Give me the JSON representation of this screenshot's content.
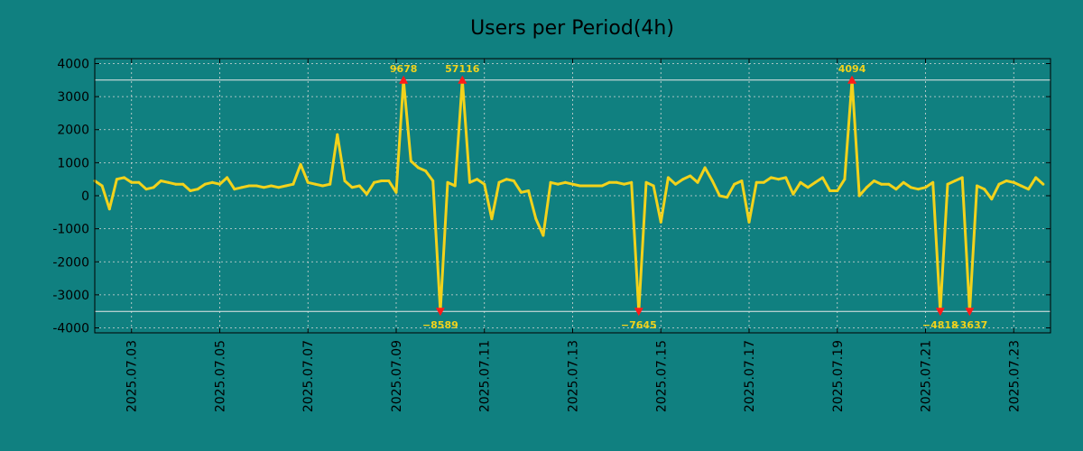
{
  "colors": {
    "background": "#108080",
    "line": "#f2d21b",
    "marker": "#ff1a1a",
    "annotation": "#f2d21b",
    "clip_line": "#e8e8e8",
    "grid": "#d8d8d8"
  },
  "chart_data": {
    "type": "line",
    "title": "Users per Period(4h)",
    "xlabel": "",
    "ylabel": "",
    "ylim": [
      -4150,
      4150
    ],
    "yticks": [
      4000,
      3000,
      2000,
      1000,
      0,
      -1000,
      -2000,
      -3000,
      -4000
    ],
    "ytick_labels": [
      "4000",
      "3000",
      "2000",
      "1000",
      "0",
      "-1000",
      "-2000",
      "-3000",
      "-4000"
    ],
    "xlim": [
      "2025-07-02 04:00",
      "2025-07-23 20:00"
    ],
    "xtick_labels": [
      "2025.07.03",
      "2025.07.05",
      "2025.07.07",
      "2025.07.09",
      "2025.07.11",
      "2025.07.13",
      "2025.07.15",
      "2025.07.17",
      "2025.07.19",
      "2025.07.21",
      "2025.07.23"
    ],
    "xtick_dates": [
      "2025-07-03",
      "2025-07-05",
      "2025-07-07",
      "2025-07-09",
      "2025-07-11",
      "2025-07-13",
      "2025-07-15",
      "2025-07-17",
      "2025-07-19",
      "2025-07-21",
      "2025-07-23"
    ],
    "grid": true,
    "clip_lines": [
      3500,
      -3500
    ],
    "series": [
      {
        "start": "2025-07-02 04:00",
        "interval_hours": 4,
        "values": [
          450,
          300,
          -400,
          500,
          550,
          400,
          400,
          200,
          250,
          450,
          400,
          350,
          350,
          150,
          200,
          350,
          400,
          350,
          550,
          200,
          250,
          300,
          300,
          250,
          300,
          250,
          300,
          350,
          950,
          400,
          350,
          300,
          350,
          1850,
          450,
          250,
          300,
          50,
          400,
          450,
          450,
          100,
          3500,
          1050,
          850,
          750,
          450,
          -3500,
          400,
          300,
          3500,
          400,
          500,
          350,
          -700,
          400,
          500,
          450,
          100,
          150,
          -700,
          -1200,
          400,
          350,
          400,
          350,
          300,
          300,
          300,
          300,
          400,
          400,
          350,
          400,
          -3500,
          400,
          300,
          -800,
          550,
          350,
          500,
          600,
          400,
          850,
          450,
          0,
          -50,
          350,
          450,
          -800,
          400,
          400,
          550,
          500,
          550,
          50,
          400,
          250,
          400,
          550,
          150,
          150,
          500,
          3500,
          0,
          250,
          450,
          350,
          350,
          200,
          400,
          250,
          200,
          250,
          400,
          -3500,
          350,
          450,
          550,
          -3500,
          300,
          200,
          -100,
          350,
          450,
          400,
          300,
          200,
          550,
          350
        ]
      }
    ],
    "annotations": [
      {
        "label": "9678",
        "date": "2025-07-09 04:00",
        "value": 3500,
        "direction": "up"
      },
      {
        "label": "57116",
        "date": "2025-07-10 12:00",
        "value": 3500,
        "direction": "up"
      },
      {
        "label": "4094",
        "date": "2025-07-19 08:00",
        "value": 3500,
        "direction": "up"
      },
      {
        "label": "−8589",
        "date": "2025-07-10 00:00",
        "value": -3500,
        "direction": "down"
      },
      {
        "label": "−7645",
        "date": "2025-07-14 12:00",
        "value": -3500,
        "direction": "down"
      },
      {
        "label": "−4818",
        "date": "2025-07-21 08:00",
        "value": -3500,
        "direction": "down"
      },
      {
        "label": "−3637",
        "date": "2025-07-22 00:00",
        "value": -3500,
        "direction": "down"
      }
    ]
  }
}
